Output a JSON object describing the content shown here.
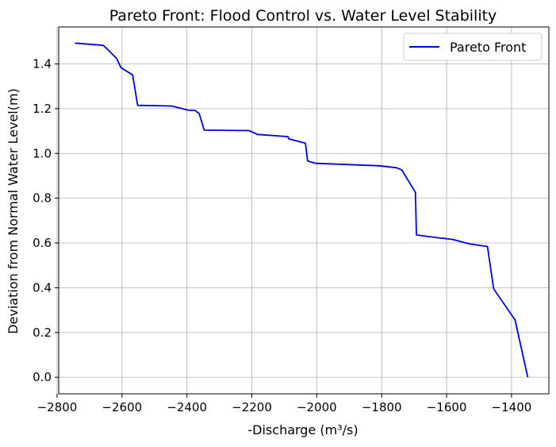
{
  "chart_data": {
    "type": "line",
    "title": "Pareto Front: Flood Control vs. Water Level Stability",
    "xlabel": "-Discharge (m³/s)",
    "ylabel": "Deviation from Normal Water Level(m)",
    "xlim": [
      -2795,
      -1285
    ],
    "ylim": [
      -0.074,
      1.565
    ],
    "grid": true,
    "legend_position": "top-right",
    "line_color": "#0000dd",
    "xticks": [
      {
        "value": -2800,
        "label": "−2800"
      },
      {
        "value": -2600,
        "label": "−2600"
      },
      {
        "value": -2400,
        "label": "−2400"
      },
      {
        "value": -2200,
        "label": "−2200"
      },
      {
        "value": -2000,
        "label": "−2000"
      },
      {
        "value": -1800,
        "label": "−1800"
      },
      {
        "value": -1600,
        "label": "−1600"
      },
      {
        "value": -1400,
        "label": "−1400"
      }
    ],
    "yticks": [
      {
        "value": 0.0,
        "label": "0.0"
      },
      {
        "value": 0.2,
        "label": "0.2"
      },
      {
        "value": 0.4,
        "label": "0.4"
      },
      {
        "value": 0.6,
        "label": "0.6"
      },
      {
        "value": 0.8,
        "label": "0.8"
      },
      {
        "value": 1.0,
        "label": "1.0"
      },
      {
        "value": 1.2,
        "label": "1.2"
      },
      {
        "value": 1.4,
        "label": "1.4"
      }
    ],
    "series": [
      {
        "name": "Pareto Front",
        "x": [
          -2745,
          -2658,
          -2650,
          -2617,
          -2603,
          -2573,
          -2567,
          -2552,
          -2447,
          -2395,
          -2375,
          -2362,
          -2347,
          -2208,
          -2183,
          -2088,
          -2087,
          -2035,
          -2028,
          -2003,
          -1808,
          -1754,
          -1738,
          -1696,
          -1693,
          -1636,
          -1582,
          -1530,
          -1474,
          -1455,
          -1389,
          -1350
        ],
        "y": [
          1.493,
          1.483,
          1.473,
          1.425,
          1.383,
          1.356,
          1.35,
          1.215,
          1.212,
          1.193,
          1.192,
          1.178,
          1.104,
          1.102,
          1.085,
          1.075,
          1.066,
          1.046,
          0.966,
          0.956,
          0.945,
          0.936,
          0.926,
          0.826,
          0.636,
          0.625,
          0.616,
          0.596,
          0.584,
          0.395,
          0.256,
          0.0
        ]
      }
    ]
  }
}
